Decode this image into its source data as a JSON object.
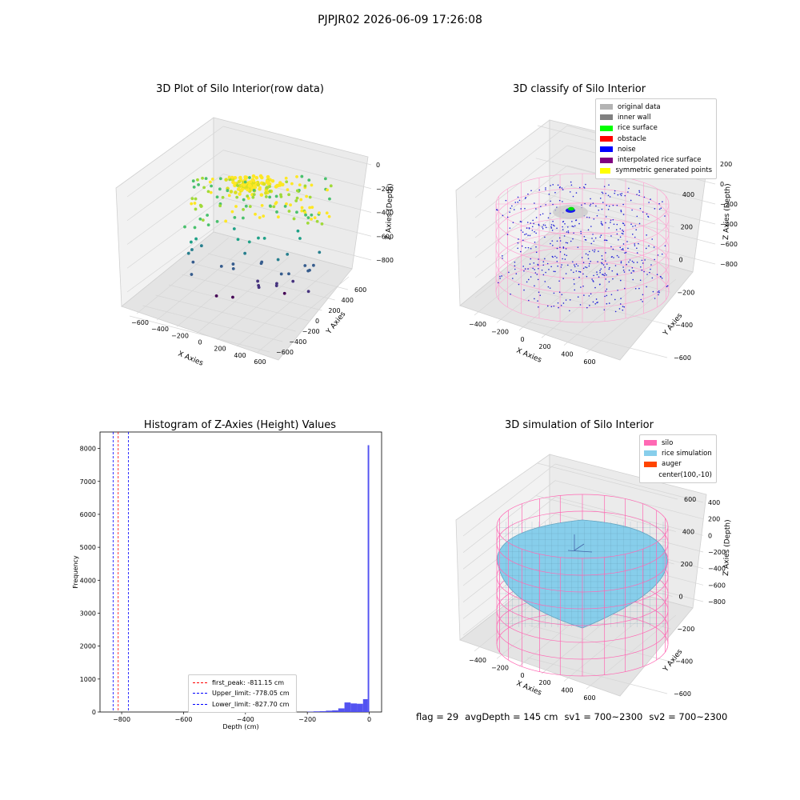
{
  "figure": {
    "suptitle": "PJPJR02 2026-06-09 17:26:08"
  },
  "panels": {
    "raw": {
      "title": "3D Plot of Silo Interior(row data)",
      "xlabel": "X Axies",
      "ylabel": "Y Axies",
      "zlabel": "Z Axies (Depth)",
      "xticks": [
        "−600",
        "−400",
        "−200",
        "0",
        "200",
        "400",
        "600"
      ],
      "yticks": [
        "−600",
        "−400",
        "−200",
        "0",
        "200",
        "400",
        "600"
      ],
      "zticks": [
        "0",
        "−200",
        "−400",
        "−600",
        "−800"
      ]
    },
    "classify": {
      "title": "3D classify of Silo Interior",
      "xlabel": "X Axies",
      "ylabel": "Y Axies",
      "zlabel": "Z Axies (Depth)",
      "xticks": [
        "−400",
        "−200",
        "0",
        "200",
        "400",
        "600"
      ],
      "yticks": [
        "−600",
        "−400",
        "−200",
        "0",
        "200",
        "400",
        "600"
      ],
      "zticks": [
        "200",
        "0",
        "−200",
        "−400",
        "−600",
        "−800"
      ],
      "legend": [
        {
          "label": "original data",
          "color": "#b3b3b3"
        },
        {
          "label": "inner wall",
          "color": "#808080"
        },
        {
          "label": "rice surface",
          "color": "#00ff00"
        },
        {
          "label": "obstacle",
          "color": "#ff0000"
        },
        {
          "label": "noise",
          "color": "#0000ff"
        },
        {
          "label": "interpolated rice surface",
          "color": "#800080"
        },
        {
          "label": "symmetric generated points",
          "color": "#ffff00"
        }
      ]
    },
    "histogram": {
      "title": "Histogram of Z-Axies (Height) Values",
      "xlabel": "Depth (cm)",
      "ylabel": "Frequency",
      "legend": [
        {
          "label": "first_peak: -811.15 cm",
          "color": "#ff0000"
        },
        {
          "label": "Upper_limit: -778.05 cm",
          "color": "#0000ff"
        },
        {
          "label": "Lower_limit: -827.70 cm",
          "color": "#0000ff"
        }
      ]
    },
    "simulation": {
      "title": "3D simulation of Silo Interior",
      "xlabel": "X Axies",
      "ylabel": "Y Axies",
      "zlabel": "Z Axies (Depth)",
      "xticks": [
        "−400",
        "−200",
        "0",
        "200",
        "400",
        "600"
      ],
      "yticks": [
        "−600",
        "−400",
        "−200",
        "0",
        "200",
        "400",
        "600"
      ],
      "zticks": [
        "400",
        "200",
        "0",
        "−200",
        "−400",
        "−600",
        "−800"
      ],
      "legend": [
        {
          "label": "silo",
          "color": "#ff69b4"
        },
        {
          "label": "rice simulation",
          "color": "#87ceeb"
        },
        {
          "label": "auger",
          "color": "#ff4500"
        },
        {
          "label": "center(100,-10)",
          "color": ""
        }
      ]
    }
  },
  "footer": {
    "flag": "flag = 29",
    "avg_depth": "avgDepth = 145 cm",
    "sv1": "sv1 = 700~2300",
    "sv2": "sv2 = 700~2300"
  },
  "chart_data": [
    {
      "type": "scatter",
      "title": "3D Plot of Silo Interior(row data)",
      "xlabel": "X Axies",
      "ylabel": "Y Axies",
      "zlabel": "Z Axies (Depth)",
      "xlim": [
        -700,
        700
      ],
      "ylim": [
        -700,
        700
      ],
      "zlim": [
        -900,
        50
      ],
      "colormap": "viridis",
      "note_points": "dense cluster near x=0,y=0,z=-150 with scattered points down to z=-800"
    },
    {
      "type": "scatter",
      "title": "3D classify of Silo Interior",
      "xlabel": "X Axies",
      "ylabel": "Y Axies",
      "zlabel": "Z Axies (Depth)",
      "xlim": [
        -500,
        700
      ],
      "ylim": [
        -700,
        700
      ],
      "zlim": [
        -900,
        250
      ],
      "series": [
        {
          "name": "original data"
        },
        {
          "name": "inner wall"
        },
        {
          "name": "rice surface"
        },
        {
          "name": "obstacle"
        },
        {
          "name": "noise"
        },
        {
          "name": "interpolated rice surface"
        },
        {
          "name": "symmetric generated points"
        }
      ]
    },
    {
      "type": "bar",
      "title": "Histogram of Z-Axies (Height) Values",
      "xlabel": "Depth (cm)",
      "ylabel": "Frequency",
      "xlim": [
        -870,
        40
      ],
      "ylim": [
        0,
        8500
      ],
      "xticks": [
        -800,
        -600,
        -400,
        -200,
        0
      ],
      "yticks": [
        0,
        1000,
        2000,
        3000,
        4000,
        5000,
        6000,
        7000,
        8000
      ],
      "bins": [
        {
          "x0": -200,
          "x1": -180,
          "value": 10
        },
        {
          "x0": -180,
          "x1": -160,
          "value": 20
        },
        {
          "x0": -160,
          "x1": -140,
          "value": 25
        },
        {
          "x0": -140,
          "x1": -120,
          "value": 40
        },
        {
          "x0": -120,
          "x1": -100,
          "value": 50
        },
        {
          "x0": -100,
          "x1": -80,
          "value": 110
        },
        {
          "x0": -80,
          "x1": -60,
          "value": 290
        },
        {
          "x0": -60,
          "x1": -40,
          "value": 260
        },
        {
          "x0": -40,
          "x1": -20,
          "value": 250
        },
        {
          "x0": -20,
          "x1": -5,
          "value": 390
        },
        {
          "x0": -5,
          "x1": 0,
          "value": 8100
        }
      ],
      "vlines": [
        {
          "name": "first_peak: -811.15 cm",
          "x": -811.15,
          "color": "#ff0000"
        },
        {
          "name": "Upper_limit: -778.05 cm",
          "x": -778.05,
          "color": "#0000ff"
        },
        {
          "name": "Lower_limit: -827.70 cm",
          "x": -827.7,
          "color": "#0000ff"
        }
      ],
      "bar_color": "#4a4af0"
    },
    {
      "type": "surface",
      "title": "3D simulation of Silo Interior",
      "xlabel": "X Axies",
      "ylabel": "Y Axies",
      "zlabel": "Z Axies (Depth)",
      "xlim": [
        -500,
        700
      ],
      "ylim": [
        -700,
        700
      ],
      "zlim": [
        -900,
        450
      ],
      "series": [
        {
          "name": "silo"
        },
        {
          "name": "rice simulation"
        },
        {
          "name": "auger"
        },
        {
          "name": "center(100,-10)"
        }
      ]
    }
  ]
}
